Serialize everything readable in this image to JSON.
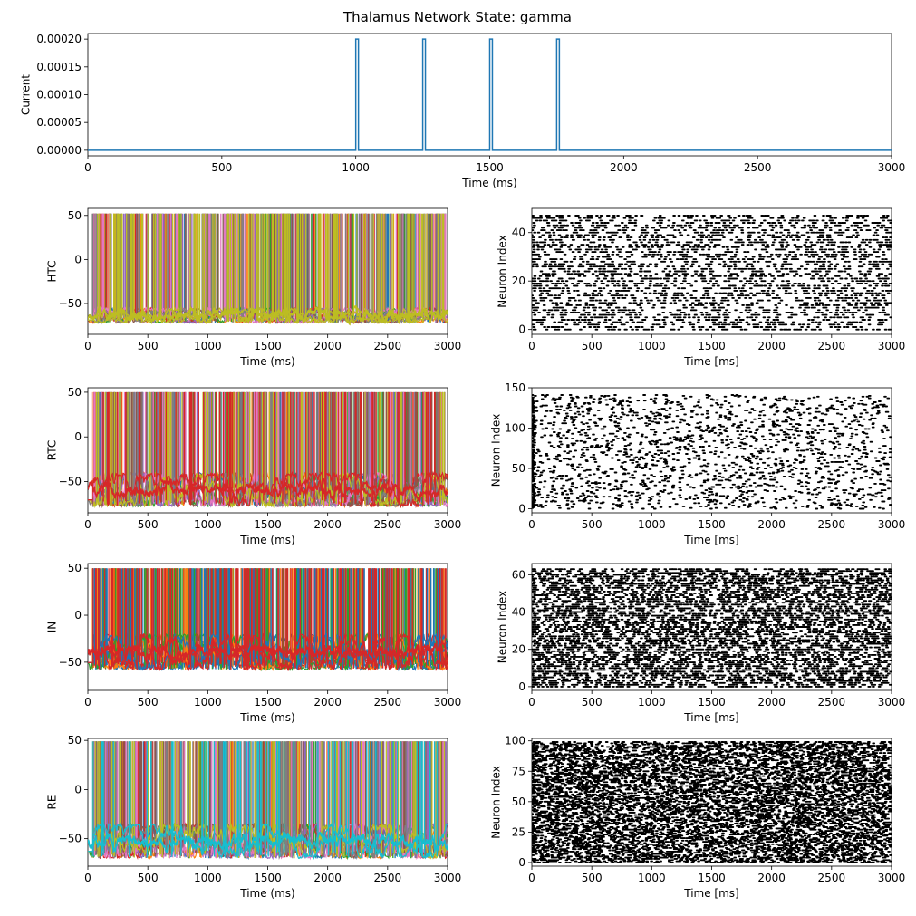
{
  "figure": {
    "title": "Thalamus Network State: gamma"
  },
  "chart_data": [
    {
      "id": "stimulus",
      "type": "line",
      "title": "",
      "xlabel": "Time (ms)",
      "ylabel": "Current",
      "xlim": [
        0,
        3000
      ],
      "ylim": [
        -1e-05,
        0.00021
      ],
      "xticks": [
        0,
        500,
        1000,
        1500,
        2000,
        2500,
        3000
      ],
      "xtick_labels": [
        "0",
        "500",
        "1000",
        "1500",
        "2000",
        "2500",
        "3000"
      ],
      "yticks": [
        0,
        5e-05,
        0.0001,
        0.00015,
        0.0002
      ],
      "ytick_labels": [
        "0.00000",
        "0.00005",
        "0.00010",
        "0.00015",
        "0.00020"
      ],
      "grid": false,
      "color": "#1f77b4",
      "baseline": 0,
      "pulse_amplitude": 0.0002,
      "pulses": [
        [
          1000,
          1010
        ],
        [
          1250,
          1260
        ],
        [
          1500,
          1510
        ],
        [
          1750,
          1760
        ]
      ]
    },
    {
      "id": "htc-voltage",
      "type": "line",
      "title": "",
      "xlabel": "Time (ms)",
      "ylabel": "HTC",
      "xlim": [
        0,
        3000
      ],
      "ylim": [
        -85,
        58
      ],
      "xticks": [
        0,
        500,
        1000,
        1500,
        2000,
        2500,
        3000
      ],
      "xtick_labels": [
        "0",
        "500",
        "1000",
        "1500",
        "2000",
        "2500",
        "3000"
      ],
      "yticks": [
        -50,
        0,
        50
      ],
      "ytick_labels": [
        "−50",
        "0",
        "50"
      ],
      "spike_peak": 52,
      "rest_range": [
        -72,
        -55
      ],
      "n_traces": 50,
      "colors": [
        "#1f77b4",
        "#ff7f0e",
        "#2ca02c",
        "#d62728",
        "#9467bd",
        "#8c564b",
        "#e377c2",
        "#7f7f7f",
        "#bcbd22"
      ],
      "top_color": "#bcbd22"
    },
    {
      "id": "htc-raster",
      "type": "scatter",
      "title": "",
      "xlabel": "Time [ms]",
      "ylabel": "Neuron Index",
      "xlim": [
        0,
        3000
      ],
      "ylim": [
        -2,
        50
      ],
      "xticks": [
        0,
        500,
        1000,
        1500,
        2000,
        2500,
        3000
      ],
      "xtick_labels": [
        "0",
        "500",
        "1000",
        "1500",
        "2000",
        "2500",
        "3000"
      ],
      "yticks": [
        0,
        20,
        40
      ],
      "ytick_labels": [
        "0",
        "20",
        "40"
      ],
      "n_neurons": 48,
      "approx_spikes": 3200,
      "color": "#000000"
    },
    {
      "id": "rtc-voltage",
      "type": "line",
      "title": "",
      "xlabel": "Time (ms)",
      "ylabel": "RTC",
      "xlim": [
        0,
        3000
      ],
      "ylim": [
        -85,
        55
      ],
      "xticks": [
        0,
        500,
        1000,
        1500,
        2000,
        2500,
        3000
      ],
      "xtick_labels": [
        "0",
        "500",
        "1000",
        "1500",
        "2000",
        "2500",
        "3000"
      ],
      "yticks": [
        -50,
        0,
        50
      ],
      "ytick_labels": [
        "−50",
        "0",
        "50"
      ],
      "spike_peak": 50,
      "rest_range": [
        -78,
        -40
      ],
      "n_traces": 140,
      "colors": [
        "#1f77b4",
        "#ff7f0e",
        "#2ca02c",
        "#d62728",
        "#9467bd",
        "#8c564b",
        "#e377c2",
        "#7f7f7f",
        "#bcbd22",
        "#17becf"
      ],
      "top_color": "#d62728"
    },
    {
      "id": "rtc-raster",
      "type": "scatter",
      "title": "",
      "xlabel": "Time [ms]",
      "ylabel": "Neuron Index",
      "xlim": [
        0,
        3000
      ],
      "ylim": [
        -5,
        150
      ],
      "xticks": [
        0,
        500,
        1000,
        1500,
        2000,
        2500,
        3000
      ],
      "xtick_labels": [
        "0",
        "500",
        "1000",
        "1500",
        "2000",
        "2500",
        "3000"
      ],
      "yticks": [
        0,
        50,
        100,
        150
      ],
      "ytick_labels": [
        "0",
        "50",
        "100",
        "150"
      ],
      "n_neurons": 142,
      "approx_spikes": 1900,
      "color": "#000000"
    },
    {
      "id": "in-voltage",
      "type": "line",
      "title": "",
      "xlabel": "Time (ms)",
      "ylabel": "IN",
      "xlim": [
        0,
        3000
      ],
      "ylim": [
        -80,
        55
      ],
      "xticks": [
        0,
        500,
        1000,
        1500,
        2000,
        2500,
        3000
      ],
      "xtick_labels": [
        "0",
        "500",
        "1000",
        "1500",
        "2000",
        "2500",
        "3000"
      ],
      "yticks": [
        -50,
        0,
        50
      ],
      "ytick_labels": [
        "−50",
        "0",
        "50"
      ],
      "spike_peak": 50,
      "rest_range": [
        -58,
        -20
      ],
      "n_traces": 64,
      "colors": [
        "#1f77b4",
        "#ff7f0e",
        "#2ca02c",
        "#d62728"
      ],
      "top_color": "#d62728"
    },
    {
      "id": "in-raster",
      "type": "scatter",
      "title": "",
      "xlabel": "Time [ms]",
      "ylabel": "Neuron Index",
      "xlim": [
        0,
        3000
      ],
      "ylim": [
        -2,
        66
      ],
      "xticks": [
        0,
        500,
        1000,
        1500,
        2000,
        2500,
        3000
      ],
      "xtick_labels": [
        "0",
        "500",
        "1000",
        "1500",
        "2000",
        "2500",
        "3000"
      ],
      "yticks": [
        0,
        20,
        40,
        60
      ],
      "ytick_labels": [
        "0",
        "20",
        "40",
        "60"
      ],
      "n_neurons": 64,
      "approx_spikes": 6500,
      "color": "#000000"
    },
    {
      "id": "re-voltage",
      "type": "line",
      "title": "",
      "xlabel": "Time (ms)",
      "ylabel": "RE",
      "xlim": [
        0,
        3000
      ],
      "ylim": [
        -78,
        52
      ],
      "xticks": [
        0,
        500,
        1000,
        1500,
        2000,
        2500,
        3000
      ],
      "xtick_labels": [
        "0",
        "500",
        "1000",
        "1500",
        "2000",
        "2500",
        "3000"
      ],
      "yticks": [
        -50,
        0,
        50
      ],
      "ytick_labels": [
        "−50",
        "0",
        "50"
      ],
      "spike_peak": 49,
      "rest_range": [
        -70,
        -35
      ],
      "n_traces": 100,
      "colors": [
        "#1f77b4",
        "#ff7f0e",
        "#2ca02c",
        "#d62728",
        "#9467bd",
        "#8c564b",
        "#e377c2",
        "#7f7f7f",
        "#bcbd22",
        "#17becf"
      ],
      "top_color": "#17becf"
    },
    {
      "id": "re-raster",
      "type": "scatter",
      "title": "",
      "xlabel": "Time [ms]",
      "ylabel": "Neuron Index",
      "xlim": [
        0,
        3000
      ],
      "ylim": [
        -3,
        102
      ],
      "xticks": [
        0,
        500,
        1000,
        1500,
        2000,
        2500,
        3000
      ],
      "xtick_labels": [
        "0",
        "500",
        "1000",
        "1500",
        "2000",
        "2500",
        "3000"
      ],
      "yticks": [
        0,
        25,
        50,
        75,
        100
      ],
      "ytick_labels": [
        "0",
        "25",
        "50",
        "75",
        "100"
      ],
      "n_neurons": 100,
      "approx_spikes": 9000,
      "color": "#000000"
    }
  ]
}
